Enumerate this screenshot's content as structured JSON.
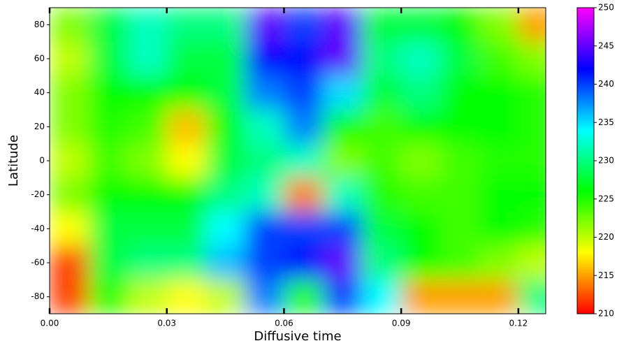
{
  "chart_data": {
    "type": "heatmap",
    "x_label": "Diffusive time",
    "y_label": "Latitude",
    "x": [
      0.005,
      0.015,
      0.025,
      0.035,
      0.045,
      0.055,
      0.065,
      0.075,
      0.085,
      0.095,
      0.105,
      0.115,
      0.125
    ],
    "y": [
      80,
      60,
      40,
      20,
      0,
      -20,
      -40,
      -60,
      -80
    ],
    "z": [
      [
        222,
        228,
        232,
        230,
        230,
        245,
        240,
        245,
        228,
        228,
        226,
        222,
        215
      ],
      [
        220,
        228,
        232,
        228,
        228,
        242,
        242,
        245,
        230,
        232,
        228,
        224,
        222
      ],
      [
        222,
        226,
        226,
        226,
        228,
        238,
        240,
        235,
        228,
        230,
        226,
        226,
        225
      ],
      [
        222,
        225,
        224,
        216,
        226,
        232,
        238,
        226,
        224,
        226,
        226,
        226,
        225
      ],
      [
        220,
        224,
        222,
        218,
        228,
        230,
        232,
        222,
        224,
        222,
        224,
        225,
        225
      ],
      [
        222,
        226,
        226,
        226,
        230,
        232,
        214,
        232,
        225,
        224,
        224,
        226,
        226
      ],
      [
        218,
        228,
        228,
        228,
        234,
        240,
        240,
        240,
        228,
        226,
        224,
        226,
        225
      ],
      [
        212,
        228,
        230,
        230,
        236,
        240,
        242,
        245,
        230,
        226,
        224,
        222,
        220
      ],
      [
        212,
        225,
        220,
        218,
        220,
        238,
        225,
        240,
        234,
        215,
        215,
        215,
        230
      ]
    ],
    "xlim": [
      0,
      0.127
    ],
    "ylim": [
      -90,
      90
    ],
    "xticks": [
      {
        "value": 0,
        "label": "0.00"
      },
      {
        "value": 0.03,
        "label": "0.03"
      },
      {
        "value": 0.06,
        "label": "0.06"
      },
      {
        "value": 0.09,
        "label": "0.09"
      },
      {
        "value": 0.12,
        "label": "0.12"
      }
    ],
    "yticks": [
      -80,
      -60,
      -40,
      -20,
      0,
      20,
      40,
      60,
      80
    ],
    "colorbar": {
      "lim": [
        210,
        250
      ],
      "ticks": [
        210,
        215,
        220,
        225,
        230,
        235,
        240,
        245,
        250
      ],
      "colors": [
        "#ff0000",
        "#ffff00",
        "#00ff00",
        "#00ffff",
        "#0000ff",
        "#ff00ff"
      ]
    }
  }
}
